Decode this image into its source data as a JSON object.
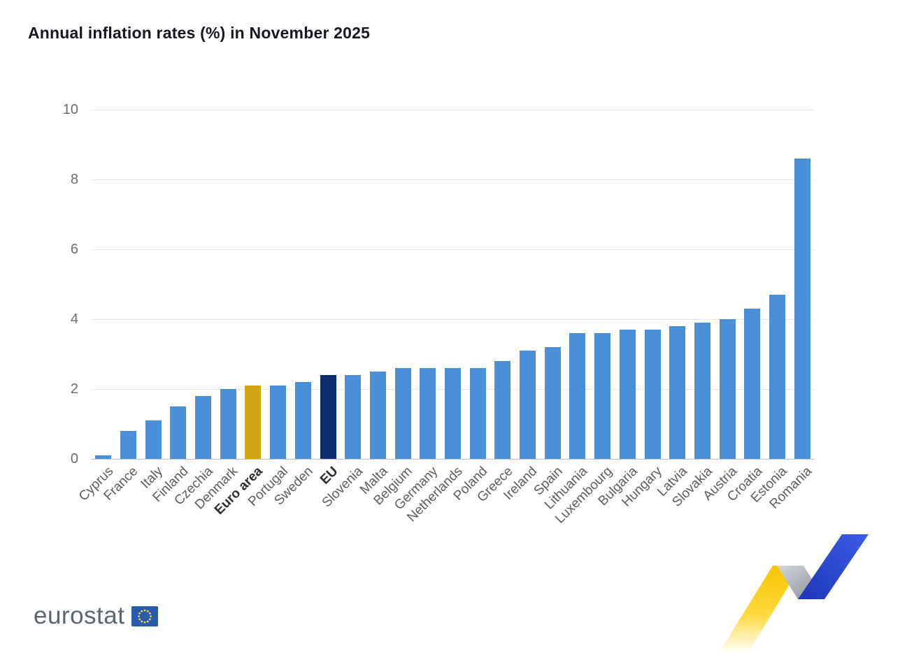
{
  "title": "Annual inflation rates (%) in November 2025",
  "chart_data": {
    "type": "bar",
    "title": "Annual inflation rates (%) in November 2025",
    "xlabel": "",
    "ylabel": "",
    "ylim": [
      0,
      10
    ],
    "yticks": [
      0,
      2,
      4,
      6,
      8,
      10
    ],
    "grid": true,
    "bar_color": "#4a90d9",
    "highlight": {
      "Euro area": "#d2a517",
      "EU": "#0e2d6e"
    },
    "categories": [
      "Cyprus",
      "France",
      "Italy",
      "Finland",
      "Czechia",
      "Denmark",
      "Euro area",
      "Portugal",
      "Sweden",
      "EU",
      "Slovenia",
      "Malta",
      "Belgium",
      "Germany",
      "Netherlands",
      "Poland",
      "Greece",
      "Ireland",
      "Spain",
      "Lithuania",
      "Luxembourg",
      "Bulgaria",
      "Hungary",
      "Latvia",
      "Slovakia",
      "Austria",
      "Croatia",
      "Estonia",
      "Romania"
    ],
    "values": [
      0.1,
      0.8,
      1.1,
      1.5,
      1.8,
      2.0,
      2.1,
      2.1,
      2.2,
      2.4,
      2.4,
      2.5,
      2.6,
      2.6,
      2.6,
      2.6,
      2.8,
      3.1,
      3.2,
      3.6,
      3.6,
      3.7,
      3.7,
      3.8,
      3.9,
      4.0,
      4.3,
      4.7,
      8.6
    ]
  },
  "footer": {
    "logo_text": "eurostat"
  }
}
